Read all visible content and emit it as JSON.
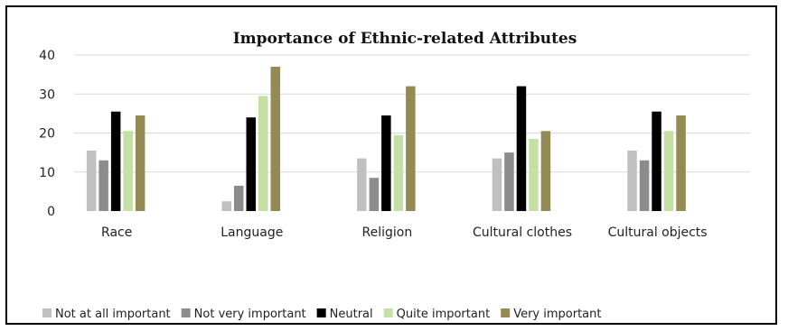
{
  "chart_data": {
    "type": "bar",
    "title": "Importance of Ethnic-related Attributes",
    "xlabel": "",
    "ylabel": "",
    "ylim": [
      0,
      40
    ],
    "yticks": [
      "0",
      "10",
      "20",
      "30",
      "40"
    ],
    "grid": true,
    "legend_position": "bottom",
    "categories": [
      "Race",
      "Language",
      "Religion",
      "Cultural clothes",
      "Cultural objects"
    ],
    "series": [
      {
        "name": "Not at all important",
        "color": "#c0c0c0",
        "values": [
          15.5,
          2.5,
          13.5,
          13.5,
          15.5
        ]
      },
      {
        "name": "Not very important",
        "color": "#8c8c8c",
        "values": [
          13,
          6.5,
          8.5,
          15,
          13
        ]
      },
      {
        "name": "Neutral",
        "color": "#000000",
        "values": [
          25.5,
          24,
          24.5,
          32,
          25.5
        ]
      },
      {
        "name": "Quite important",
        "color": "#c5e0a5",
        "values": [
          20.5,
          29.5,
          19.5,
          18.5,
          20.5
        ]
      },
      {
        "name": "Very important",
        "color": "#948a54",
        "values": [
          24.5,
          37,
          32,
          20.5,
          24.5
        ]
      }
    ]
  }
}
